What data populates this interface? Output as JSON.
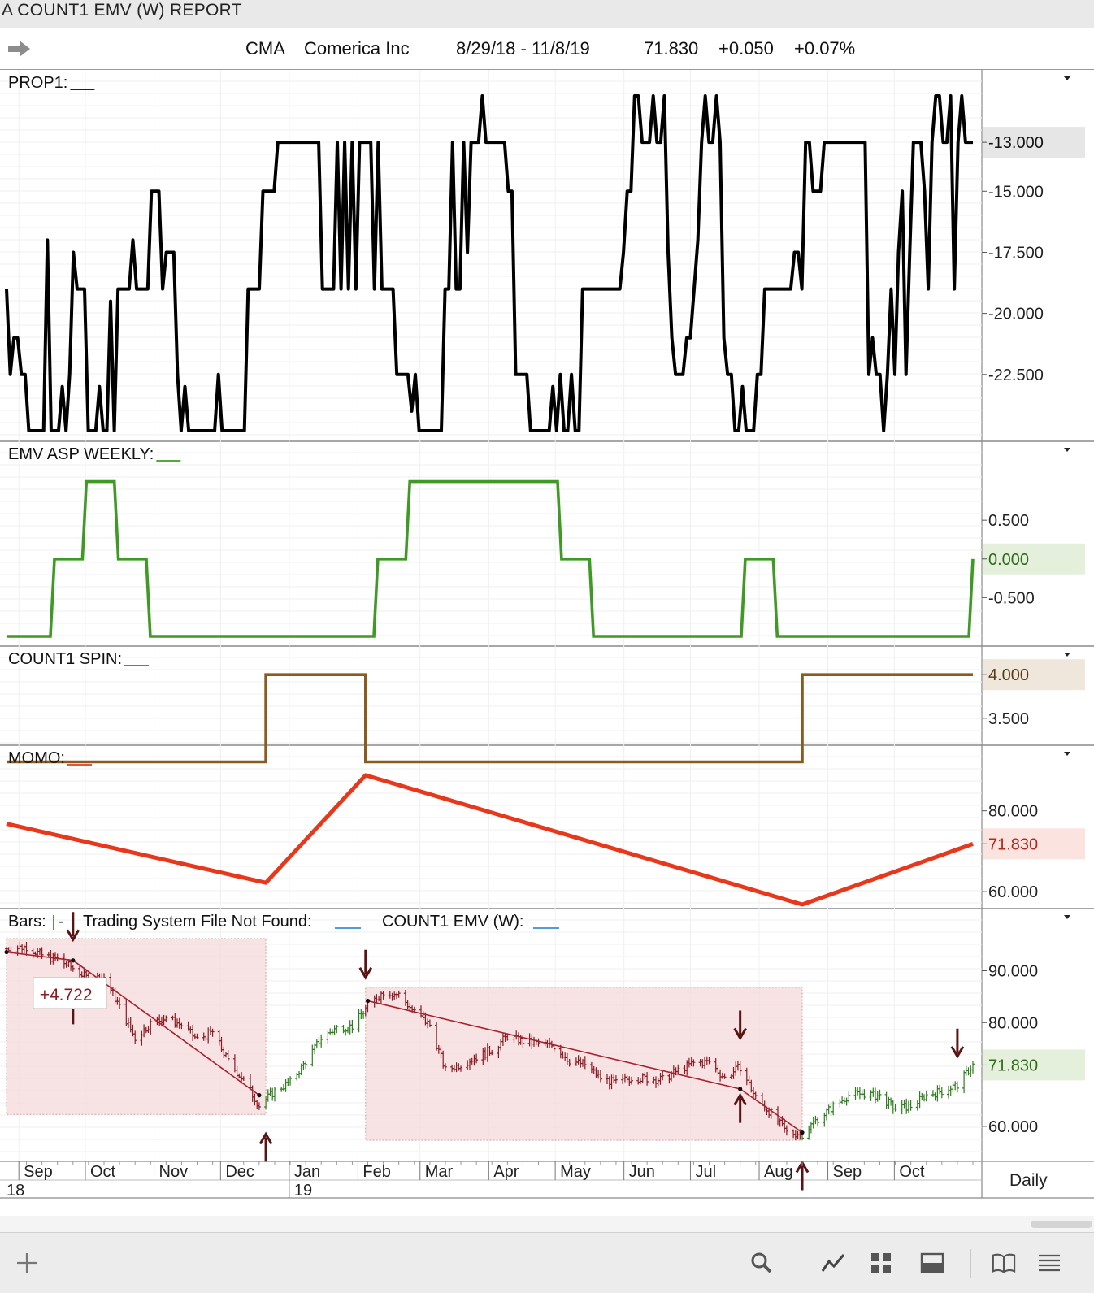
{
  "window": {
    "title": "A COUNT1 EMV (W)  REPORT"
  },
  "header": {
    "symbol": "CMA",
    "name": "Comerica Inc",
    "date_range": "8/29/18 - 11/8/19",
    "last": "71.830",
    "change": "+0.050",
    "change_pct": "+0.07%"
  },
  "footer": {
    "interval": "Daily"
  },
  "colors": {
    "prop1": "#000000",
    "emv": "#3f9a25",
    "spin": "#8b5a1e",
    "momo": "#e8381c",
    "down_bars": "#8b1a22",
    "up_bars": "#2e7d1e"
  },
  "chart_data": [
    {
      "type": "line",
      "panel": "PROP1",
      "title": "PROP1:",
      "y_ticks": [
        "-13.000",
        "-15.000",
        "-17.500",
        "-20.000",
        "-22.500"
      ],
      "last_value": "-13.000",
      "ylim": [
        -25.1,
        -11.1
      ],
      "step": true,
      "values": [
        -19,
        -22.5,
        -21,
        -21,
        -22.5,
        -22.5,
        -24.8,
        -24.8,
        -24.8,
        -24.8,
        -24.8,
        -17,
        -24.8,
        -24.8,
        -24.8,
        -23,
        -24.8,
        -22.5,
        -17.5,
        -19,
        -19,
        -19,
        -24.8,
        -24.8,
        -24.8,
        -23,
        -24.8,
        -24.8,
        -19.5,
        -24.8,
        -19,
        -19,
        -19,
        -19,
        -17,
        -19,
        -19,
        -19,
        -19,
        -15,
        -15,
        -15,
        -19,
        -17.5,
        -17.5,
        -17.5,
        -22.5,
        -24.8,
        -23,
        -24.8,
        -24.8,
        -24.8,
        -24.8,
        -24.8,
        -24.8,
        -24.8,
        -24.8,
        -22.5,
        -24.8,
        -24.8,
        -24.8,
        -24.8,
        -24.8,
        -24.8,
        -24.8,
        -19,
        -19,
        -19,
        -19,
        -15,
        -15,
        -15,
        -15,
        -13,
        -13,
        -13,
        -13,
        -13,
        -13,
        -13,
        -13,
        -13,
        -13,
        -13,
        -13,
        -19,
        -19,
        -19,
        -19,
        -13,
        -19,
        -13,
        -19,
        -13,
        -19,
        -13,
        -13,
        -13,
        -13,
        -19,
        -13,
        -19,
        -19,
        -19,
        -19,
        -22.5,
        -22.5,
        -22.5,
        -22.5,
        -24,
        -22.5,
        -24.8,
        -24.8,
        -24.8,
        -24.8,
        -24.8,
        -24.8,
        -24.8,
        -19,
        -19,
        -13,
        -19,
        -19,
        -13,
        -17.5,
        -13,
        -13,
        -13,
        -11.1,
        -13,
        -13,
        -13,
        -13,
        -13,
        -13,
        -15,
        -15,
        -22.5,
        -22.5,
        -22.5,
        -22.5,
        -24.8,
        -24.8,
        -24.8,
        -24.8,
        -24.8,
        -24.8,
        -23,
        -24.8,
        -22.5,
        -24.8,
        -24.8,
        -22.5,
        -24.8,
        -24.8,
        -19,
        -19,
        -19,
        -19,
        -19,
        -19,
        -19,
        -19,
        -19,
        -19,
        -19,
        -17.5,
        -15,
        -15,
        -11.1,
        -11.1,
        -13,
        -13,
        -13,
        -11.1,
        -13,
        -13,
        -11.1,
        -17.5,
        -21,
        -22.5,
        -22.5,
        -22.5,
        -21,
        -21,
        -19,
        -17,
        -13,
        -11.1,
        -13,
        -13,
        -11.1,
        -13,
        -21,
        -22.5,
        -22.5,
        -24.8,
        -24.8,
        -23,
        -24.8,
        -24.8,
        -24.8,
        -22.5,
        -22.5,
        -19,
        -19,
        -19,
        -19,
        -19,
        -19,
        -19,
        -19,
        -17.5,
        -17.5,
        -19,
        -13,
        -13,
        -15,
        -15,
        -15,
        -13,
        -13,
        -13,
        -13,
        -13,
        -13,
        -13,
        -13,
        -13,
        -13,
        -13,
        -13,
        -22.5,
        -21,
        -22.5,
        -22.5,
        -24.8,
        -22.5,
        -19,
        -22.5,
        -17.5,
        -15,
        -22.5,
        -17.5,
        -13,
        -13,
        -13,
        -15,
        -19,
        -13,
        -11.1,
        -11.1,
        -13,
        -13,
        -11.1,
        -19,
        -13,
        -11.1,
        -13,
        -13,
        -13
      ]
    },
    {
      "type": "line",
      "panel": "EMV ASP WEEKLY",
      "title": "EMV ASP WEEKLY:",
      "y_ticks": [
        "0.500",
        "0.000",
        "-0.500"
      ],
      "last_value": "0.000",
      "ylim": [
        -1.2,
        1.3
      ],
      "step": true,
      "values": [
        -1,
        -1,
        -1,
        -1,
        -1,
        -1,
        -1,
        -1,
        -1,
        -1,
        -1,
        -1,
        0,
        0,
        0,
        0,
        0,
        0,
        0,
        0,
        1,
        1,
        1,
        1,
        1,
        1,
        1,
        1,
        0,
        0,
        0,
        0,
        0,
        0,
        0,
        0,
        -1,
        -1,
        -1,
        -1,
        -1,
        -1,
        -1,
        -1,
        -1,
        -1,
        -1,
        -1,
        -1,
        -1,
        -1,
        -1,
        -1,
        -1,
        -1,
        -1,
        -1,
        -1,
        -1,
        -1,
        -1,
        -1,
        -1,
        -1,
        -1,
        -1,
        -1,
        -1,
        -1,
        -1,
        -1,
        -1,
        -1,
        -1,
        -1,
        -1,
        -1,
        -1,
        -1,
        -1,
        -1,
        -1,
        -1,
        -1,
        -1,
        -1,
        -1,
        -1,
        -1,
        -1,
        -1,
        -1,
        -1,
        0,
        0,
        0,
        0,
        0,
        0,
        0,
        0,
        1,
        1,
        1,
        1,
        1,
        1,
        1,
        1,
        1,
        1,
        1,
        1,
        1,
        1,
        1,
        1,
        1,
        1,
        1,
        1,
        1,
        1,
        1,
        1,
        1,
        1,
        1,
        1,
        1,
        1,
        1,
        1,
        1,
        1,
        1,
        1,
        1,
        1,
        0,
        0,
        0,
        0,
        0,
        0,
        0,
        0,
        -1,
        -1,
        -1,
        -1,
        -1,
        -1,
        -1,
        -1,
        -1,
        -1,
        -1,
        -1,
        -1,
        -1,
        -1,
        -1,
        -1,
        -1,
        -1,
        -1,
        -1,
        -1,
        -1,
        -1,
        -1,
        -1,
        -1,
        -1,
        -1,
        -1,
        -1,
        -1,
        -1,
        -1,
        -1,
        -1,
        -1,
        -1,
        0,
        0,
        0,
        0,
        0,
        0,
        0,
        0,
        -1,
        -1,
        -1,
        -1,
        -1,
        -1,
        -1,
        -1,
        -1,
        -1,
        -1,
        -1,
        -1,
        -1,
        -1,
        -1,
        -1,
        -1,
        -1,
        -1,
        -1,
        -1,
        -1,
        -1,
        -1,
        -1,
        -1,
        -1,
        -1,
        -1,
        -1,
        -1,
        -1,
        -1,
        -1,
        -1,
        -1,
        -1,
        -1,
        -1,
        -1,
        -1,
        -1,
        -1,
        -1,
        -1,
        -1,
        -1,
        -1,
        0
      ]
    },
    {
      "type": "line",
      "panel": "COUNT1 SPIN",
      "title": "COUNT1 SPIN:",
      "y_ticks": [
        "4.000",
        "3.500"
      ],
      "last_value": "4.000",
      "ylim": [
        2.8,
        4.3
      ],
      "step": true,
      "segments": [
        {
          "from": "2018-08-29",
          "to": "2018-12-24",
          "value": 3
        },
        {
          "from": "2018-12-24",
          "to": "2019-02-07",
          "value": 4
        },
        {
          "from": "2019-02-07",
          "to": "2019-08-23",
          "value": 3
        },
        {
          "from": "2019-08-23",
          "to": "2019-11-08",
          "value": 4
        }
      ]
    },
    {
      "type": "line",
      "panel": "MOMO",
      "title": "MOMO:",
      "y_ticks": [
        "80.000",
        "71.830",
        "60.000"
      ],
      "last_value": "71.830",
      "ylim": [
        56,
        92
      ],
      "points": [
        {
          "x": "2018-08-29",
          "y": 76.8
        },
        {
          "x": "2018-12-24",
          "y": 62.2
        },
        {
          "x": "2019-02-07",
          "y": 88.8
        },
        {
          "x": "2019-08-23",
          "y": 56.8
        },
        {
          "x": "2019-11-08",
          "y": 71.8
        }
      ]
    },
    {
      "type": "ohlc",
      "panel": "Bars",
      "title": "Bars:",
      "legend": [
        "Bars:",
        "Trading System File Not Found:",
        "COUNT1 EMV (W):"
      ],
      "y_ticks": [
        "90.000",
        "80.000",
        "71.830",
        "60.000"
      ],
      "last_value": "71.830",
      "ylim": [
        53.4,
        98.7
      ],
      "x_ticks": [
        "Sep",
        "Oct",
        "Nov",
        "Dec",
        "Jan",
        "Feb",
        "Mar",
        "Apr",
        "May",
        "Jun",
        "Jul",
        "Aug",
        "Sep",
        "Oct"
      ],
      "year_labels": [
        "18",
        "19"
      ],
      "annotation": "+4.722",
      "closes": [
        {
          "x": "2018-08-29",
          "y": 94.2
        },
        {
          "x": "2018-09-07",
          "y": 94.6
        },
        {
          "x": "2018-09-14",
          "y": 93.0
        },
        {
          "x": "2018-09-21",
          "y": 92.2
        },
        {
          "x": "2018-09-28",
          "y": 90.5
        },
        {
          "x": "2018-10-05",
          "y": 88.4
        },
        {
          "x": "2018-10-12",
          "y": 88.8
        },
        {
          "x": "2018-10-19",
          "y": 83.0
        },
        {
          "x": "2018-10-26",
          "y": 77.0
        },
        {
          "x": "2018-11-02",
          "y": 79.8
        },
        {
          "x": "2018-11-09",
          "y": 81.0
        },
        {
          "x": "2018-11-16",
          "y": 79.5
        },
        {
          "x": "2018-11-23",
          "y": 76.7
        },
        {
          "x": "2018-11-30",
          "y": 78.2
        },
        {
          "x": "2018-12-07",
          "y": 72.5
        },
        {
          "x": "2018-12-14",
          "y": 68.9
        },
        {
          "x": "2018-12-21",
          "y": 64.0
        },
        {
          "x": "2018-12-28",
          "y": 66.8
        },
        {
          "x": "2019-01-04",
          "y": 68.5
        },
        {
          "x": "2019-01-11",
          "y": 72.5
        },
        {
          "x": "2019-01-18",
          "y": 77.0
        },
        {
          "x": "2019-01-25",
          "y": 79.0
        },
        {
          "x": "2019-02-01",
          "y": 79.3
        },
        {
          "x": "2019-02-08",
          "y": 83.2
        },
        {
          "x": "2019-02-15",
          "y": 86.0
        },
        {
          "x": "2019-02-22",
          "y": 85.4
        },
        {
          "x": "2019-03-01",
          "y": 82.0
        },
        {
          "x": "2019-03-08",
          "y": 79.5
        },
        {
          "x": "2019-03-15",
          "y": 70.8
        },
        {
          "x": "2019-03-22",
          "y": 72.0
        },
        {
          "x": "2019-03-29",
          "y": 73.4
        },
        {
          "x": "2019-04-05",
          "y": 74.7
        },
        {
          "x": "2019-04-12",
          "y": 77.4
        },
        {
          "x": "2019-04-19",
          "y": 76.4
        },
        {
          "x": "2019-04-26",
          "y": 76.0
        },
        {
          "x": "2019-05-03",
          "y": 75.5
        },
        {
          "x": "2019-05-10",
          "y": 72.7
        },
        {
          "x": "2019-05-17",
          "y": 71.9
        },
        {
          "x": "2019-05-24",
          "y": 69.3
        },
        {
          "x": "2019-05-31",
          "y": 68.3
        },
        {
          "x": "2019-06-07",
          "y": 69.4
        },
        {
          "x": "2019-06-14",
          "y": 69.2
        },
        {
          "x": "2019-06-21",
          "y": 69.0
        },
        {
          "x": "2019-06-28",
          "y": 70.8
        },
        {
          "x": "2019-07-05",
          "y": 72.2
        },
        {
          "x": "2019-07-12",
          "y": 72.4
        },
        {
          "x": "2019-07-19",
          "y": 69.3
        },
        {
          "x": "2019-07-26",
          "y": 71.5
        },
        {
          "x": "2019-08-02",
          "y": 65.5
        },
        {
          "x": "2019-08-09",
          "y": 62.5
        },
        {
          "x": "2019-08-16",
          "y": 58.8
        },
        {
          "x": "2019-08-23",
          "y": 58.5
        },
        {
          "x": "2019-08-30",
          "y": 61.5
        },
        {
          "x": "2019-09-06",
          "y": 63.8
        },
        {
          "x": "2019-09-13",
          "y": 66.0
        },
        {
          "x": "2019-09-20",
          "y": 66.3
        },
        {
          "x": "2019-09-27",
          "y": 65.8
        },
        {
          "x": "2019-10-04",
          "y": 63.4
        },
        {
          "x": "2019-10-11",
          "y": 63.9
        },
        {
          "x": "2019-10-18",
          "y": 66.0
        },
        {
          "x": "2019-10-25",
          "y": 66.8
        },
        {
          "x": "2019-11-01",
          "y": 68.0
        },
        {
          "x": "2019-11-08",
          "y": 71.8
        }
      ],
      "trend_lines": [
        [
          {
            "x": "2018-08-29",
            "y": 93.6
          },
          {
            "x": "2018-09-28",
            "y": 92.0
          },
          {
            "x": "2018-12-21",
            "y": 66.0
          }
        ],
        [
          {
            "x": "2019-02-08",
            "y": 84.2
          },
          {
            "x": "2019-07-26",
            "y": 67.2
          },
          {
            "x": "2019-08-23",
            "y": 58.8
          }
        ]
      ],
      "shaded_regions": [
        {
          "from": "2018-08-29",
          "to": "2018-12-24",
          "ylim": [
            62.3,
            96.2
          ]
        },
        {
          "from": "2019-02-07",
          "to": "2019-08-23",
          "ylim": [
            57.3,
            86.8
          ]
        }
      ],
      "down_arrows": [
        "2018-09-28",
        "2019-02-07",
        "2019-07-26",
        "2019-11-01"
      ],
      "up_arrows": [
        "2018-09-28",
        "2018-12-24",
        "2019-07-26",
        "2019-08-23"
      ]
    }
  ]
}
